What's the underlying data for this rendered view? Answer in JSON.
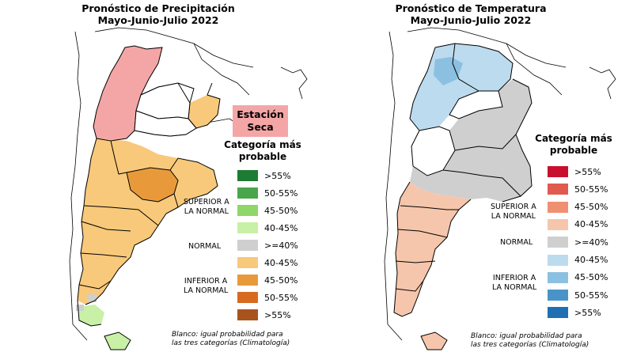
{
  "precipitation": {
    "title_line1": "Pronóstico de Precipitación",
    "title_line2": "Mayo-Junio-Julio 2022",
    "dry_station_line1": "Estación",
    "dry_station_line2": "Seca",
    "legend_title_line1": "Categoría más",
    "legend_title_line2": "probable",
    "legend_items": [
      {
        "label": ">55%",
        "color": "#1e7b34"
      },
      {
        "label": "50-55%",
        "color": "#49a64a"
      },
      {
        "label": "45-50%",
        "color": "#8fd66b"
      },
      {
        "label": "40-45%",
        "color": "#c8f0a6"
      },
      {
        "label": ">=40%",
        "color": "#cfcfcf"
      },
      {
        "label": "40-45%",
        "color": "#f8c97a"
      },
      {
        "label": "45-50%",
        "color": "#e89a3a"
      },
      {
        "label": "50-55%",
        "color": "#d86a1f"
      },
      {
        "label": ">55%",
        "color": "#a8531c"
      }
    ],
    "group_superior": [
      "SUPERIOR A",
      "LA NORMAL"
    ],
    "group_normal": "NORMAL",
    "group_inferior": [
      "INFERIOR A",
      "LA NORMAL"
    ],
    "footnote_line1": "Blanco: igual probabilidad para",
    "footnote_line2": "las tres categorías (Climatología)"
  },
  "temperature": {
    "title_line1": "Pronóstico de Temperatura",
    "title_line2": "Mayo-Junio-Julio 2022",
    "legend_title_line1": "Categoría más",
    "legend_title_line2": "probable",
    "legend_items": [
      {
        "label": ">55%",
        "color": "#c8102e"
      },
      {
        "label": "50-55%",
        "color": "#e05a4f"
      },
      {
        "label": "45-50%",
        "color": "#ef9070"
      },
      {
        "label": "40-45%",
        "color": "#f5c6ac"
      },
      {
        "label": ">=40%",
        "color": "#cfcfcf"
      },
      {
        "label": "40-45%",
        "color": "#bcdbee"
      },
      {
        "label": "45-50%",
        "color": "#8cc0e0"
      },
      {
        "label": "50-55%",
        "color": "#4a93c8"
      },
      {
        "label": ">55%",
        "color": "#1f6fb2"
      }
    ],
    "group_superior": [
      "SUPERIOR A",
      "LA NORMAL"
    ],
    "group_normal": "NORMAL",
    "group_inferior": [
      "INFERIOR A",
      "LA NORMAL"
    ],
    "footnote_line1": "Blanco: igual probabilidad para",
    "footnote_line2": "las tres categorías (Climatología)"
  }
}
